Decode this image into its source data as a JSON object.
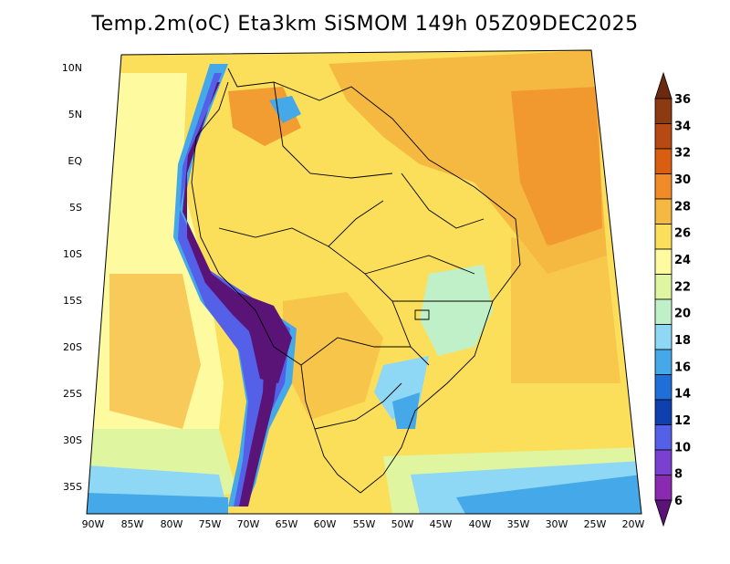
{
  "title": "Temp.2m(oC) Eta3km SiSMOM 149h 05Z09DEC2025",
  "map": {
    "lat_labels": [
      "10N",
      "5N",
      "EQ",
      "5S",
      "10S",
      "15S",
      "20S",
      "25S",
      "30S",
      "35S"
    ],
    "lon_labels": [
      "90W",
      "85W",
      "80W",
      "75W",
      "70W",
      "65W",
      "60W",
      "55W",
      "50W",
      "45W",
      "40W",
      "35W",
      "30W",
      "25W",
      "20W"
    ]
  },
  "colorbar": {
    "labels": [
      "36",
      "34",
      "32",
      "30",
      "28",
      "26",
      "24",
      "22",
      "20",
      "18",
      "16",
      "14",
      "12",
      "10",
      "8",
      "6"
    ],
    "colors": [
      "#6b2a0f",
      "#8c3a10",
      "#b54a12",
      "#d85f12",
      "#f08c28",
      "#f5b942",
      "#fbdf5a",
      "#fdfaa0",
      "#dff5a0",
      "#bff0c8",
      "#8ed8f5",
      "#45a8e8",
      "#1f6fd8",
      "#0e40b0",
      "#5560e8",
      "#7a40d0",
      "#8a2ab0",
      "#5a1478"
    ]
  }
}
